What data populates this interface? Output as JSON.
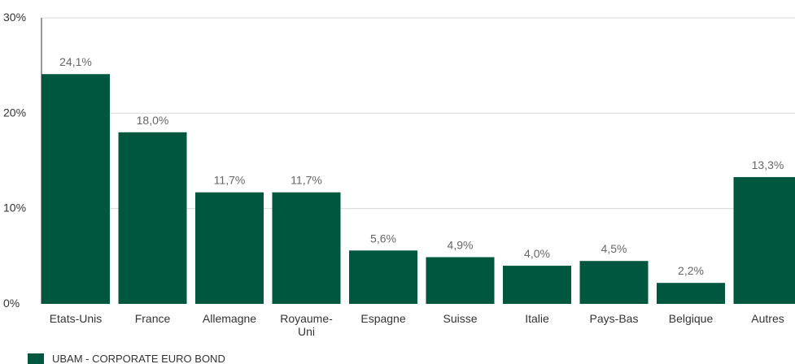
{
  "chart_data": {
    "type": "bar",
    "categories": [
      "Etats-Unis",
      "France",
      "Allemagne",
      "Royaume-\nUni",
      "Espagne",
      "Suisse",
      "Italie",
      "Pays-Bas",
      "Belgique",
      "Autres"
    ],
    "series": [
      {
        "name": "UBAM - CORPORATE EURO BOND",
        "values": [
          24.1,
          18.0,
          11.7,
          11.7,
          5.6,
          4.9,
          4.0,
          4.5,
          2.2,
          13.3
        ],
        "color": "#00573f"
      }
    ],
    "data_labels": [
      "24,1%",
      "18,0%",
      "11,7%",
      "11,7%",
      "5,6%",
      "4,9%",
      "4,0%",
      "4,5%",
      "2,2%",
      "13,3%"
    ],
    "y_ticks": [
      {
        "value": 0,
        "label": "0%"
      },
      {
        "value": 10,
        "label": "10%"
      },
      {
        "value": 20,
        "label": "20%"
      },
      {
        "value": 30,
        "label": "30%"
      }
    ],
    "ylim": [
      0,
      30
    ],
    "title": "",
    "xlabel": "",
    "ylabel": "",
    "grid": true,
    "legend_position": "bottom-left",
    "colors": {
      "bar": "#00573f",
      "grid": "#d9d9d9",
      "axis": "#333333",
      "tick_text": "#333333",
      "data_label_text": "#666666"
    }
  },
  "legend": {
    "label": "UBAM - CORPORATE EURO BOND"
  }
}
